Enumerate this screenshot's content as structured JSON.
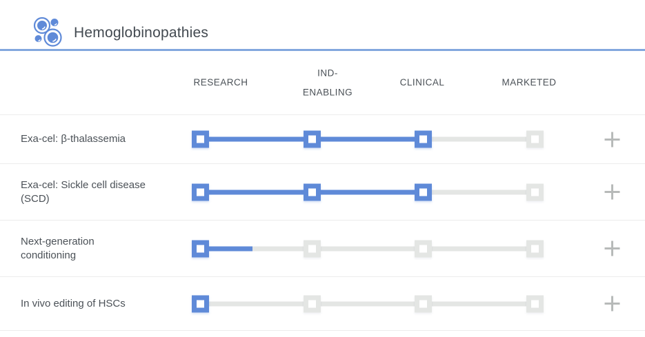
{
  "header": {
    "title": "Hemoglobinopathies",
    "icon": "cells-icon"
  },
  "pipeline": {
    "stages": [
      "RESEARCH",
      "IND-ENABLING",
      "CLINICAL",
      "MARKETED"
    ]
  },
  "rows": [
    {
      "label": "Exa-cel: β-thalassemia",
      "progress": 2,
      "expand_icon": "plus-icon"
    },
    {
      "label": "Exa-cel: Sickle cell disease (SCD)",
      "progress": 2,
      "expand_icon": "plus-icon"
    },
    {
      "label": "Next-generation conditioning",
      "progress": 0.47,
      "expand_icon": "plus-icon"
    },
    {
      "label": "In vivo editing of HSCs",
      "progress": 0,
      "expand_icon": "plus-icon"
    }
  ],
  "colors": {
    "accent": "#5f8ad8",
    "track": "#e4e6e4",
    "rule": "#82a7de",
    "plus": "#b7bab9"
  },
  "chart_data": {
    "type": "table",
    "title": "Hemoglobinopathies",
    "categories": [
      "RESEARCH",
      "IND-ENABLING",
      "CLINICAL",
      "MARKETED"
    ],
    "series": [
      {
        "name": "Exa-cel: β-thalassemia",
        "stage_reached": "CLINICAL",
        "progress_stage_index": 2
      },
      {
        "name": "Exa-cel: Sickle cell disease (SCD)",
        "stage_reached": "CLINICAL",
        "progress_stage_index": 2
      },
      {
        "name": "Next-generation conditioning",
        "stage_reached": "RESEARCH",
        "progress_stage_index": 0.47
      },
      {
        "name": "In vivo editing of HSCs",
        "stage_reached": "RESEARCH",
        "progress_stage_index": 0
      }
    ],
    "legend": "blue = completed/active stage, gray = not yet reached"
  }
}
